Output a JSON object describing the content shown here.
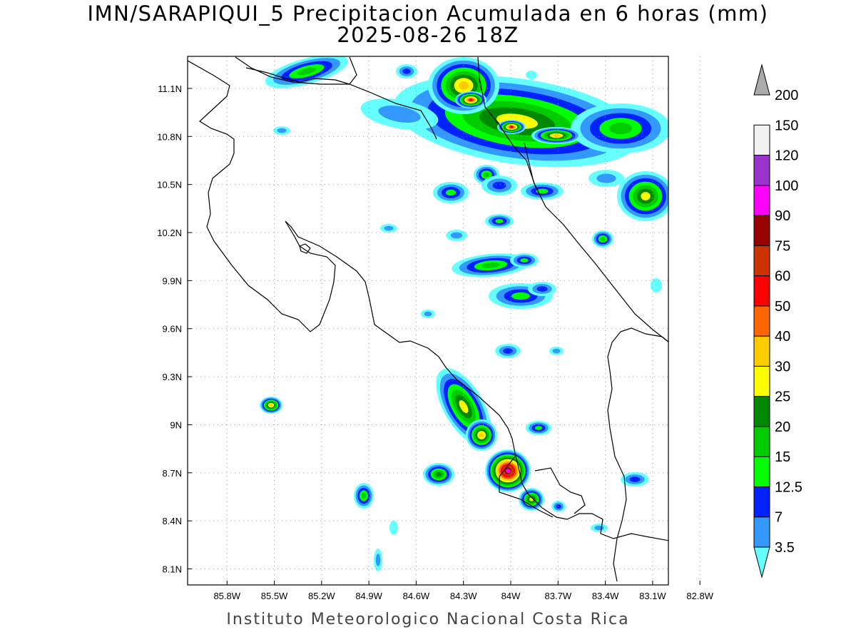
{
  "title": {
    "line1": "IMN/SARAPIQUI_5 Precipitacion Acumulada en 6 horas (mm)",
    "line2": "2025-08-26 18Z"
  },
  "footer": "Instituto Meteorologico Nacional Costa Rica",
  "map": {
    "lon_range": [
      -86.05,
      -83.0
    ],
    "lat_range": [
      8.0,
      11.3
    ],
    "grid": "dotted",
    "lon_ticks": [
      {
        "value": -85.8,
        "label": "85.8W"
      },
      {
        "value": -85.5,
        "label": "85.5W"
      },
      {
        "value": -85.2,
        "label": "85.2W"
      },
      {
        "value": -84.9,
        "label": "84.9W"
      },
      {
        "value": -84.6,
        "label": "84.6W"
      },
      {
        "value": -84.3,
        "label": "84.3W"
      },
      {
        "value": -84.0,
        "label": "84W"
      },
      {
        "value": -83.7,
        "label": "83.7W"
      },
      {
        "value": -83.4,
        "label": "83.4W"
      },
      {
        "value": -83.1,
        "label": "83.1W"
      },
      {
        "value": -82.8,
        "label": "82.8W"
      }
    ],
    "lat_ticks": [
      {
        "value": 11.1,
        "label": "11.1N"
      },
      {
        "value": 10.8,
        "label": "10.8N"
      },
      {
        "value": 10.5,
        "label": "10.5N"
      },
      {
        "value": 10.2,
        "label": "10.2N"
      },
      {
        "value": 9.9,
        "label": "9.9N"
      },
      {
        "value": 9.6,
        "label": "9.6N"
      },
      {
        "value": 9.3,
        "label": "9.3N"
      },
      {
        "value": 9.0,
        "label": "9N"
      },
      {
        "value": 8.7,
        "label": "8.7N"
      },
      {
        "value": 8.4,
        "label": "8.4N"
      },
      {
        "value": 8.1,
        "label": "8.1N"
      }
    ]
  },
  "colorbar": {
    "bins": [
      {
        "label": "3.5",
        "color": "#66ffff"
      },
      {
        "label": "7",
        "color": "#3399ff"
      },
      {
        "label": "12.5",
        "color": "#0022ff"
      },
      {
        "label": "15",
        "color": "#00ff00"
      },
      {
        "label": "20",
        "color": "#00cc00"
      },
      {
        "label": "25",
        "color": "#008800"
      },
      {
        "label": "30",
        "color": "#ffff00"
      },
      {
        "label": "40",
        "color": "#ffcc00"
      },
      {
        "label": "50",
        "color": "#ff6600"
      },
      {
        "label": "60",
        "color": "#ff0000"
      },
      {
        "label": "75",
        "color": "#cc3300"
      },
      {
        "label": "90",
        "color": "#990000"
      },
      {
        "label": "100",
        "color": "#ff00ff"
      },
      {
        "label": "120",
        "color": "#9933cc"
      },
      {
        "label": "150",
        "color": "#f2f2f2"
      },
      {
        "label": "200",
        "color": "#aaaaaa"
      }
    ]
  }
}
